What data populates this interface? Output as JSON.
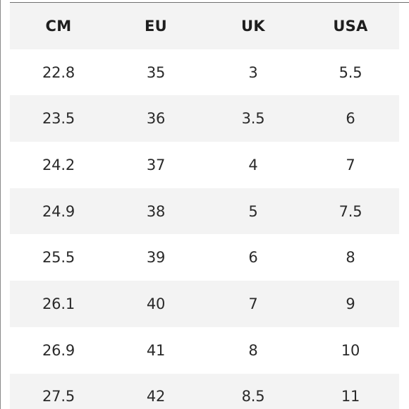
{
  "table": {
    "headers": [
      "CM",
      "EU",
      "UK",
      "USA"
    ],
    "rows": [
      [
        "22.8",
        "35",
        "3",
        "5.5"
      ],
      [
        "23.5",
        "36",
        "3.5",
        "6"
      ],
      [
        "24.2",
        "37",
        "4",
        "7"
      ],
      [
        "24.9",
        "38",
        "5",
        "7.5"
      ],
      [
        "25.5",
        "39",
        "6",
        "8"
      ],
      [
        "26.1",
        "40",
        "7",
        "9"
      ],
      [
        "26.9",
        "41",
        "8",
        "10"
      ],
      [
        "27.5",
        "42",
        "8.5",
        "11"
      ]
    ]
  },
  "colors": {
    "shaded_row": "#f3f3f3",
    "text": "#2a2a2a"
  }
}
